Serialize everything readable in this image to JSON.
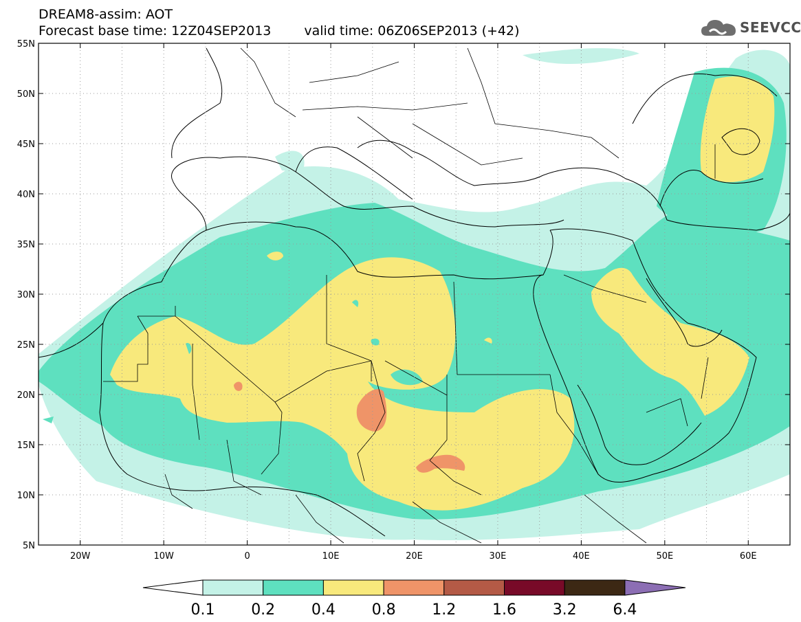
{
  "header": {
    "line1": "DREAM8-assim: AOT",
    "line2_base": "Forecast base time: 12Z04SEP2013",
    "line2_valid": "valid time: 06Z06SEP2013 (+42)"
  },
  "logo": {
    "text": "SEEVCCC",
    "icon": "cloud-icon"
  },
  "map": {
    "lon_range": [
      -25,
      65
    ],
    "lat_range": [
      5,
      55
    ],
    "lon_ticks": [
      {
        "value": -20,
        "label": "20W"
      },
      {
        "value": -10,
        "label": "10W"
      },
      {
        "value": 0,
        "label": "0"
      },
      {
        "value": 10,
        "label": "10E"
      },
      {
        "value": 20,
        "label": "20E"
      },
      {
        "value": 30,
        "label": "30E"
      },
      {
        "value": 40,
        "label": "40E"
      },
      {
        "value": 50,
        "label": "50E"
      },
      {
        "value": 60,
        "label": "60E"
      }
    ],
    "lat_ticks": [
      {
        "value": 5,
        "label": "5N"
      },
      {
        "value": 10,
        "label": "10N"
      },
      {
        "value": 15,
        "label": "15N"
      },
      {
        "value": 20,
        "label": "20N"
      },
      {
        "value": 25,
        "label": "25N"
      },
      {
        "value": 30,
        "label": "30N"
      },
      {
        "value": 35,
        "label": "35N"
      },
      {
        "value": 40,
        "label": "40N"
      },
      {
        "value": 45,
        "label": "45N"
      },
      {
        "value": 50,
        "label": "50N"
      },
      {
        "value": 55,
        "label": "55N"
      }
    ],
    "grid": "dotted"
  },
  "colorbar": {
    "colors": [
      "#ffffff",
      "#c4f2e7",
      "#5ee0bf",
      "#f8e97c",
      "#ef9468",
      "#b45a46",
      "#780a28",
      "#3c2814",
      "#8c6eb4"
    ],
    "labels": [
      "0.1",
      "0.2",
      "0.4",
      "0.8",
      "1.2",
      "1.6",
      "3.2",
      "6.4"
    ]
  }
}
